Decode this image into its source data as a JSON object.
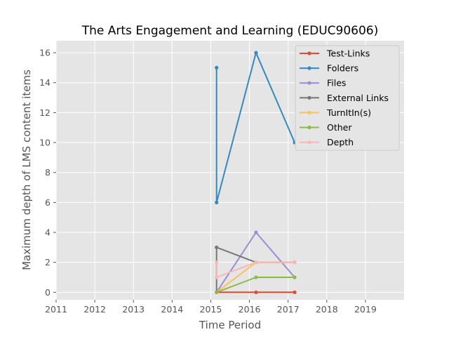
{
  "chart_data": {
    "type": "line",
    "title": "The Arts Engagement and Learning (EDUC90606)",
    "xlabel": "Time Period",
    "ylabel": "Maximum depth of LMS content items",
    "xlim": [
      2011,
      2020
    ],
    "ylim": [
      -0.5,
      16.8
    ],
    "xticks": [
      "2011",
      "2012",
      "2013",
      "2014",
      "2015",
      "2016",
      "2017",
      "2018",
      "2019"
    ],
    "yticks": [
      "0",
      "2",
      "4",
      "6",
      "8",
      "10",
      "12",
      "14",
      "16"
    ],
    "grid": true,
    "legend_position": "top-right",
    "series": [
      {
        "name": "Test-Links",
        "color": "#e24a33",
        "points": [
          [
            2015.15,
            0
          ],
          [
            2015.15,
            0
          ],
          [
            2016.17,
            0
          ],
          [
            2017.17,
            0
          ]
        ]
      },
      {
        "name": "Folders",
        "color": "#348abd",
        "points": [
          [
            2015.15,
            15
          ],
          [
            2015.15,
            6
          ],
          [
            2016.17,
            16
          ],
          [
            2017.17,
            10
          ]
        ]
      },
      {
        "name": "Files",
        "color": "#988ed5",
        "points": [
          [
            2015.15,
            0
          ],
          [
            2015.15,
            0
          ],
          [
            2016.17,
            4
          ],
          [
            2017.17,
            1
          ]
        ]
      },
      {
        "name": "External Links",
        "color": "#777777",
        "points": [
          [
            2015.15,
            0
          ],
          [
            2015.15,
            3
          ],
          [
            2016.17,
            2
          ],
          [
            2017.17,
            2
          ]
        ]
      },
      {
        "name": "TurnItIn(s)",
        "color": "#fbc15e",
        "points": [
          [
            2015.15,
            0
          ],
          [
            2015.15,
            0
          ],
          [
            2016.17,
            2
          ],
          [
            2017.17,
            2
          ]
        ]
      },
      {
        "name": "Other",
        "color": "#8eba42",
        "points": [
          [
            2015.15,
            0
          ],
          [
            2015.15,
            0
          ],
          [
            2016.17,
            1
          ],
          [
            2017.17,
            1
          ]
        ]
      },
      {
        "name": "Depth",
        "color": "#ffb5b8",
        "points": [
          [
            2015.15,
            2
          ],
          [
            2015.15,
            1
          ],
          [
            2016.17,
            2
          ],
          [
            2017.17,
            2
          ]
        ]
      }
    ]
  }
}
